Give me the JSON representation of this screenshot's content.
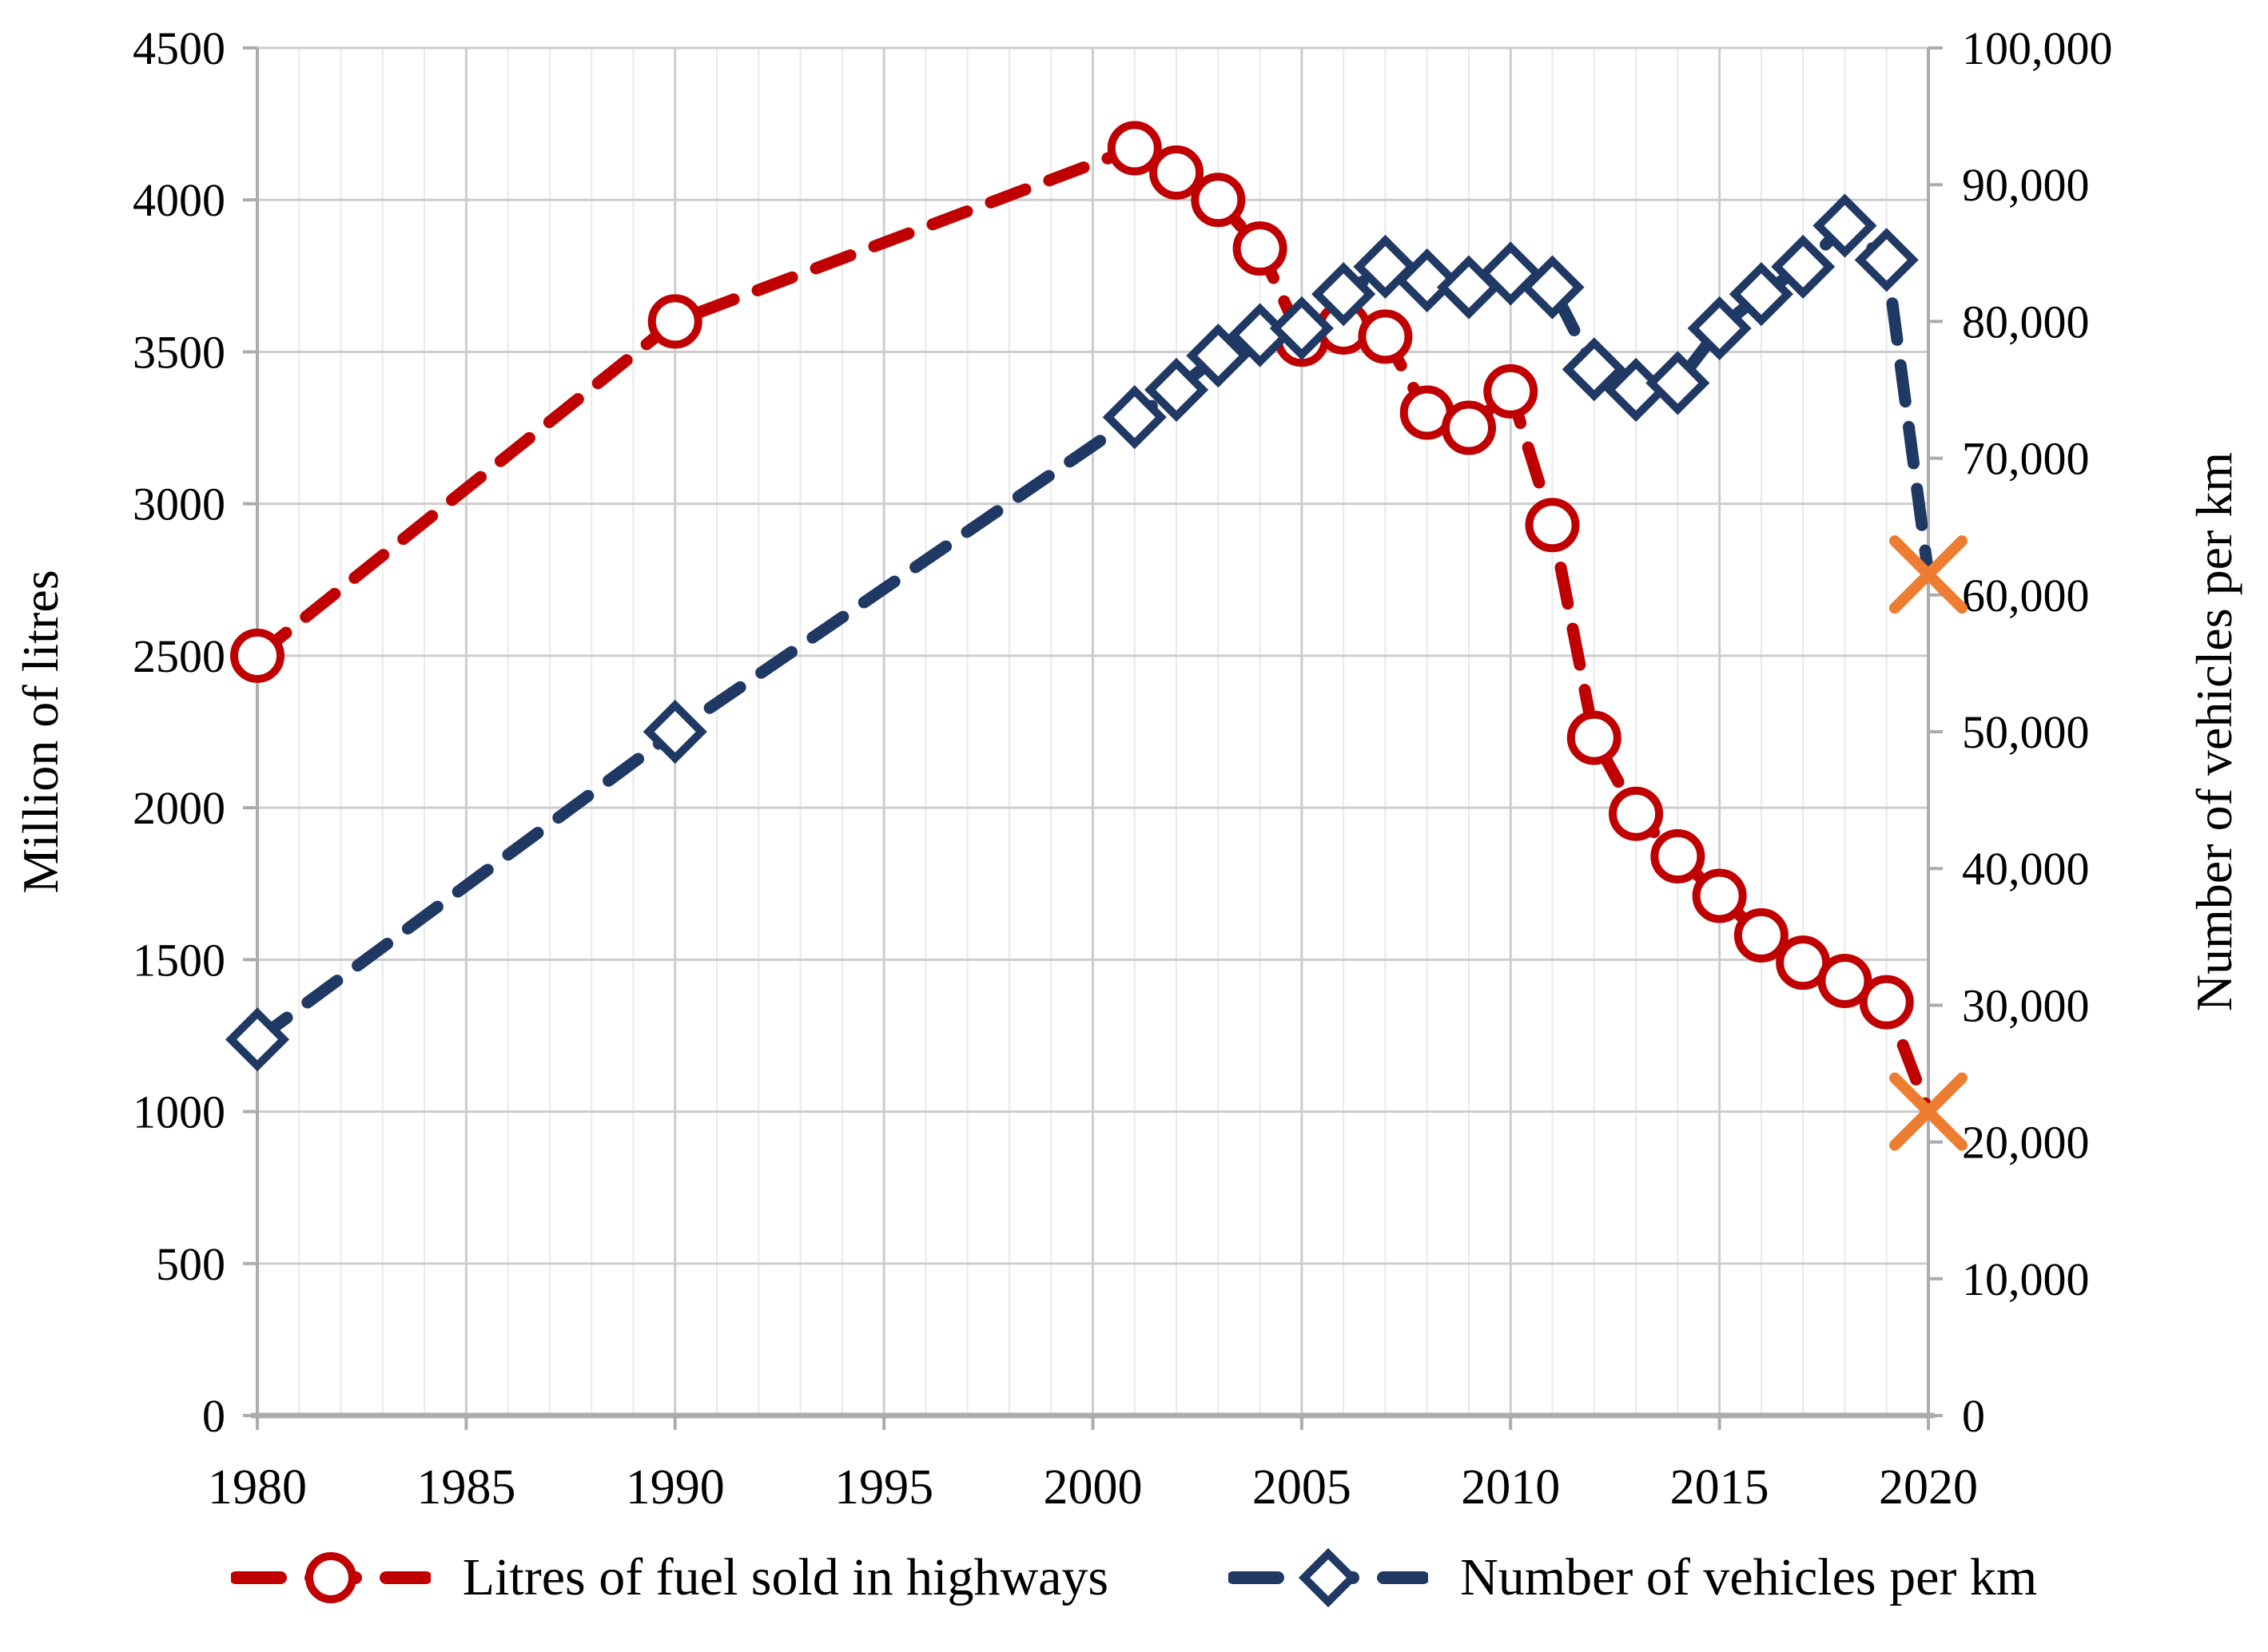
{
  "chart_data": {
    "type": "line",
    "title": "",
    "x_axis": {
      "min": 1980,
      "max": 2020,
      "minor_step": 1,
      "major_step": 5,
      "tick_values": [
        1980,
        1985,
        1990,
        1995,
        2000,
        2005,
        2010,
        2015,
        2020
      ],
      "tick_labels": [
        "1980",
        "1985",
        "1990",
        "1995",
        "2000",
        "2005",
        "2010",
        "2015",
        "2020"
      ]
    },
    "y_left_axis": {
      "title": "Million of litres",
      "min": 0,
      "max": 4500,
      "tick_values": [
        0,
        500,
        1000,
        1500,
        2000,
        2500,
        3000,
        3500,
        4000,
        4500
      ],
      "tick_labels": [
        "0",
        "500",
        "1000",
        "1500",
        "2000",
        "2500",
        "3000",
        "3500",
        "4000",
        "4500"
      ]
    },
    "y_right_axis": {
      "title": "Number of vehicles per km",
      "min": 0,
      "max": 100000,
      "tick_values": [
        0,
        10000,
        20000,
        30000,
        40000,
        50000,
        60000,
        70000,
        80000,
        90000,
        100000
      ],
      "tick_labels": [
        "0",
        "10,000",
        "20,000",
        "30,000",
        "40,000",
        "50,000",
        "60,000",
        "70,000",
        "80,000",
        "90,000",
        "100,000"
      ]
    },
    "grid": {
      "horizontal": true,
      "vertical_minor": true,
      "vertical_major": true
    },
    "legend_position": "bottom",
    "highlight": {
      "year": 2020,
      "color": "#ED7D31",
      "marker": "x"
    },
    "series": [
      {
        "name": "Litres of fuel sold in highways",
        "axis": "left",
        "color": "#C00000",
        "marker": "circle",
        "line_style": "dashed",
        "points": [
          {
            "x": 1980,
            "y": 2500
          },
          {
            "x": 1990,
            "y": 3600
          },
          {
            "x": 2001,
            "y": 4170
          },
          {
            "x": 2002,
            "y": 4090
          },
          {
            "x": 2003,
            "y": 4000
          },
          {
            "x": 2004,
            "y": 3840
          },
          {
            "x": 2005,
            "y": 3540
          },
          {
            "x": 2006,
            "y": 3580
          },
          {
            "x": 2007,
            "y": 3550
          },
          {
            "x": 2008,
            "y": 3300
          },
          {
            "x": 2009,
            "y": 3250
          },
          {
            "x": 2010,
            "y": 3370
          },
          {
            "x": 2011,
            "y": 2930
          },
          {
            "x": 2012,
            "y": 2230
          },
          {
            "x": 2013,
            "y": 1980
          },
          {
            "x": 2014,
            "y": 1840
          },
          {
            "x": 2015,
            "y": 1710
          },
          {
            "x": 2016,
            "y": 1580
          },
          {
            "x": 2017,
            "y": 1490
          },
          {
            "x": 2018,
            "y": 1430
          },
          {
            "x": 2019,
            "y": 1360
          },
          {
            "x": 2020,
            "y": 1000,
            "highlight": true
          }
        ]
      },
      {
        "name": "Number of vehicles per km",
        "axis": "right",
        "color": "#1F3864",
        "marker": "diamond",
        "line_style": "dashed",
        "points": [
          {
            "x": 1980,
            "y": 27500
          },
          {
            "x": 1990,
            "y": 50000
          },
          {
            "x": 2001,
            "y": 73000
          },
          {
            "x": 2002,
            "y": 75000
          },
          {
            "x": 2003,
            "y": 77500
          },
          {
            "x": 2004,
            "y": 79000
          },
          {
            "x": 2005,
            "y": 79500
          },
          {
            "x": 2006,
            "y": 82000
          },
          {
            "x": 2007,
            "y": 84000
          },
          {
            "x": 2008,
            "y": 83000
          },
          {
            "x": 2009,
            "y": 82500
          },
          {
            "x": 2010,
            "y": 83500
          },
          {
            "x": 2011,
            "y": 82500
          },
          {
            "x": 2012,
            "y": 76500
          },
          {
            "x": 2013,
            "y": 75000
          },
          {
            "x": 2014,
            "y": 75500
          },
          {
            "x": 2015,
            "y": 79500
          },
          {
            "x": 2016,
            "y": 82000
          },
          {
            "x": 2017,
            "y": 84000
          },
          {
            "x": 2018,
            "y": 87000
          },
          {
            "x": 2019,
            "y": 84500
          },
          {
            "x": 2020,
            "y": 61500,
            "highlight": true
          }
        ]
      }
    ]
  }
}
